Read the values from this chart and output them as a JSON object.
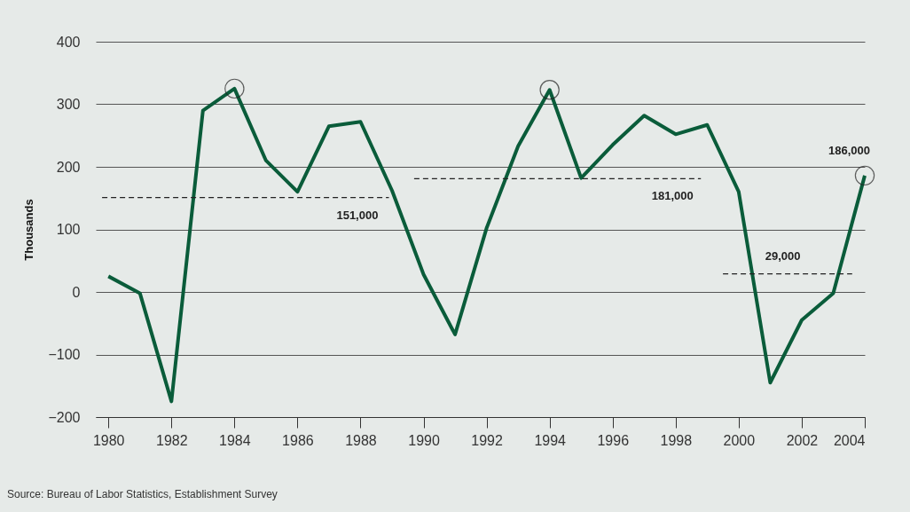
{
  "chart_data": {
    "type": "line",
    "ylabel": "Thousands",
    "x": [
      1980,
      1981,
      1982,
      1983,
      1984,
      1985,
      1986,
      1987,
      1988,
      1989,
      1990,
      1991,
      1992,
      1993,
      1994,
      1995,
      1996,
      1997,
      1998,
      1999,
      2000,
      2001,
      2002,
      2003,
      2004
    ],
    "series": [
      {
        "color": "#0a5c3a",
        "line_style": "solid",
        "values": [
          25,
          -2,
          -175,
          290,
          325,
          210,
          160,
          265,
          272,
          162,
          28,
          -68,
          102,
          233,
          323,
          182,
          235,
          282,
          252,
          267,
          160,
          -145,
          -45,
          -2,
          186
        ]
      },
      {
        "type": "line",
        "color": "#222222",
        "line_style": "dashed",
        "x": [
          1979.8,
          1988.9
        ],
        "values": [
          151,
          151
        ]
      },
      {
        "type": "line",
        "color": "#222222",
        "line_style": "dashed",
        "x": [
          1989.7,
          1998.8
        ],
        "values": [
          181,
          181
        ]
      },
      {
        "type": "line",
        "color": "#222222",
        "line_style": "dashed",
        "x": [
          1999.5,
          2003.6
        ],
        "values": [
          29,
          29
        ]
      },
      {
        "type": "scatter",
        "color": "#222222",
        "marker": "circle",
        "x": [
          1984,
          1994,
          2004
        ],
        "values": [
          325,
          323,
          186
        ]
      }
    ],
    "xlim": [
      1979.6,
      2004
    ],
    "xticks": [
      1980,
      1982,
      1984,
      1986,
      1988,
      1990,
      1992,
      1994,
      1996,
      1998,
      2000,
      2002,
      2004
    ],
    "ylim": [
      -200,
      400
    ],
    "yticks": [
      -200,
      -100,
      0,
      100,
      200,
      300,
      400
    ],
    "grid": "y",
    "annotations": [
      {
        "text": "151,000",
        "x": 1987.9,
        "y": 151
      },
      {
        "text": "181,000",
        "x": 1997.9,
        "y": 181
      },
      {
        "text": "29,000",
        "x": 2001.4,
        "y": 29
      },
      {
        "text": "186,000",
        "x": 2004,
        "y": 186
      },
      "Source: Bureau of Labor Statistics, Establishment Survey"
    ]
  }
}
